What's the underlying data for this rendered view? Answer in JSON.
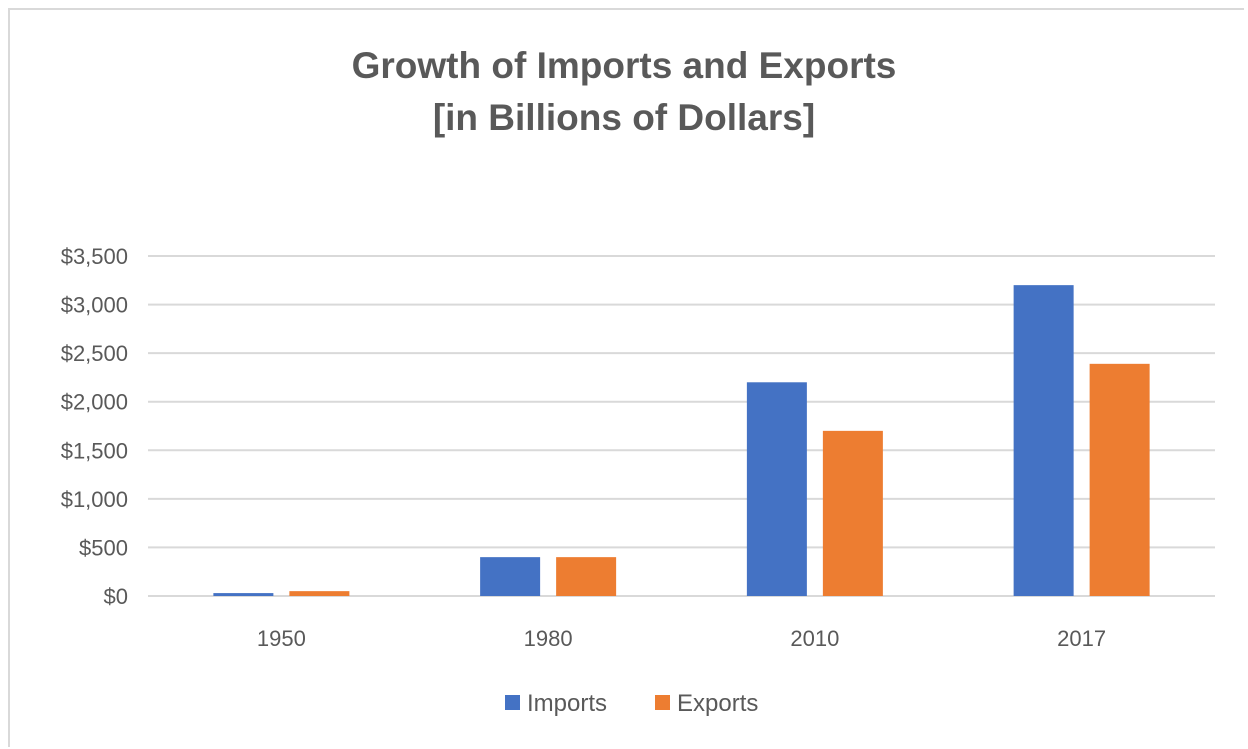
{
  "chart_data": {
    "type": "bar",
    "title": [
      "Growth of Imports and Exports",
      "[in Billions of Dollars]"
    ],
    "categories": [
      "1950",
      "1980",
      "2010",
      "2017"
    ],
    "series": [
      {
        "name": "Imports",
        "color": "#4472c4",
        "values": [
          30,
          400,
          2200,
          3200
        ]
      },
      {
        "name": "Exports",
        "color": "#ed7d31",
        "values": [
          50,
          400,
          1700,
          2390
        ]
      }
    ],
    "ylim": [
      0,
      3500
    ],
    "ytick_labels": [
      "$0",
      "$500",
      "$1,000",
      "$1,500",
      "$2,000",
      "$2,500",
      "$3,000",
      "$3,500"
    ],
    "grid": true,
    "legend_position": "bottom",
    "gridline_color": "#d9d9d9",
    "text_color": "#595959"
  }
}
